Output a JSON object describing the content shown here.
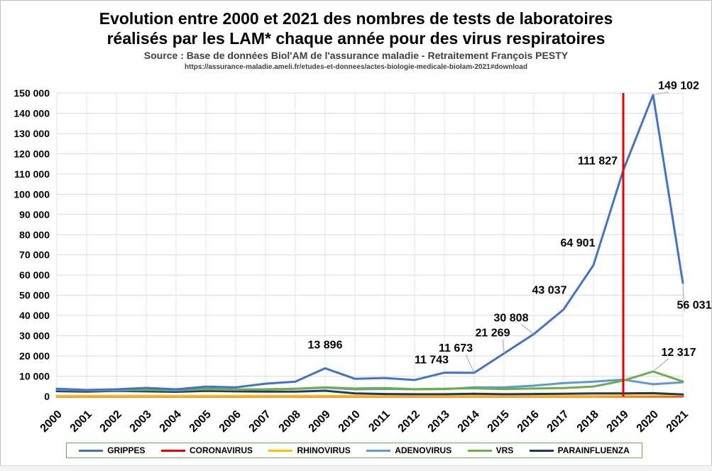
{
  "title_lines": [
    "Evolution entre 2000 et 2021 des nombres de tests de laboratoires",
    "réalisés par les LAM* chaque année pour des virus respiratoires"
  ],
  "subtitle": "Source : Base de données Biol'AM de l'assurance maladie - Retraitement François PESTY",
  "source_url": "https://assurance-maladie.ameli.fr/etudes-et-donnees/actes-biologie-medicale-biolam-2021#download",
  "chart_data": {
    "type": "line",
    "title": "Evolution entre 2000 et 2021 des nombres de tests de laboratoires réalisés par les LAM* chaque année pour des virus respiratoires",
    "x": [
      "2000",
      "2001",
      "2002",
      "2003",
      "2004",
      "2005",
      "2006",
      "2007",
      "2008",
      "2009",
      "2010",
      "2011",
      "2012",
      "2013",
      "2014",
      "2015",
      "2016",
      "2017",
      "2018",
      "2019",
      "2020",
      "2021"
    ],
    "ylim": [
      0,
      150000
    ],
    "ytick_step": 10000,
    "yticks": [
      "0",
      "10 000",
      "20 000",
      "30 000",
      "40 000",
      "50 000",
      "60 000",
      "70 000",
      "80 000",
      "90 000",
      "100 000",
      "110 000",
      "120 000",
      "130 000",
      "140 000",
      "150 000"
    ],
    "grid": true,
    "legend_position": "bottom",
    "series": [
      {
        "name": "GRIPPES",
        "color": "#4472c4",
        "values": [
          3800,
          3200,
          3500,
          4200,
          3500,
          4800,
          4500,
          6300,
          7300,
          13896,
          8700,
          9100,
          8100,
          11743,
          11673,
          21269,
          30808,
          43037,
          64901,
          111827,
          149102,
          56031
        ]
      },
      {
        "name": "CORONAVIRUS",
        "color": "#e60000",
        "values": [
          0,
          0,
          0,
          0,
          0,
          0,
          0,
          0,
          0,
          0,
          0,
          0,
          0,
          0,
          0,
          0,
          0,
          0,
          0,
          0,
          0,
          0
        ]
      },
      {
        "name": "RHINOVIRUS",
        "color": "#ffc000",
        "values": [
          200,
          200,
          200,
          200,
          200,
          200,
          200,
          200,
          200,
          200,
          200,
          200,
          200,
          200,
          200,
          200,
          200,
          200,
          200,
          300,
          400,
          500
        ]
      },
      {
        "name": "ADENOVIRUS",
        "color": "#5b9bd5",
        "values": [
          3300,
          3000,
          3000,
          3200,
          3000,
          3500,
          3300,
          3500,
          3800,
          4300,
          3500,
          3700,
          3500,
          3600,
          4500,
          4500,
          5300,
          6600,
          7300,
          8300,
          6000,
          7000
        ]
      },
      {
        "name": "VRS",
        "color": "#70ad47",
        "values": [
          3800,
          3100,
          3400,
          3300,
          3300,
          3800,
          3400,
          3500,
          3800,
          4500,
          3900,
          4100,
          3600,
          3800,
          4000,
          3600,
          3900,
          4100,
          4900,
          7800,
          12317,
          7400
        ]
      },
      {
        "name": "PARAINFLUENZA",
        "color": "#1f3864",
        "values": [
          2600,
          2400,
          2700,
          2500,
          2300,
          2700,
          2500,
          2400,
          2400,
          2800,
          1500,
          1200,
          1100,
          1100,
          1300,
          1100,
          1200,
          1300,
          1500,
          1500,
          1600,
          1000
        ]
      }
    ],
    "annotations": [
      {
        "series": "GRIPPES",
        "x": "2009",
        "label": "13 896"
      },
      {
        "series": "GRIPPES",
        "x": "2013",
        "label": "11 743"
      },
      {
        "series": "GRIPPES",
        "x": "2014",
        "label": "11 673"
      },
      {
        "series": "GRIPPES",
        "x": "2015",
        "label": "21 269"
      },
      {
        "series": "GRIPPES",
        "x": "2016",
        "label": "30 808"
      },
      {
        "series": "GRIPPES",
        "x": "2017",
        "label": "43 037"
      },
      {
        "series": "GRIPPES",
        "x": "2018",
        "label": "64 901"
      },
      {
        "series": "GRIPPES",
        "x": "2019",
        "label": "111 827"
      },
      {
        "series": "GRIPPES",
        "x": "2020",
        "label": "149 102"
      },
      {
        "series": "GRIPPES",
        "x": "2021",
        "label": "56 031"
      },
      {
        "series": "VRS",
        "x": "2020",
        "label": "12 317"
      }
    ],
    "vertical_marker": {
      "x": "2019",
      "color": "#e60000"
    }
  }
}
